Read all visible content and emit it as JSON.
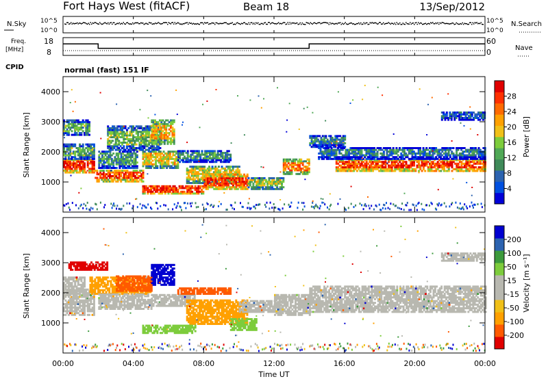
{
  "header": {
    "station": "Fort Hays West (fitACF)",
    "beam": "Beam 18",
    "date": "13/Sep/2012"
  },
  "top_panels": {
    "nsky_label": "N.Sky",
    "nsearch_label": "N.Search",
    "noise_ticks_left": [
      "10^5",
      "10^0"
    ],
    "noise_ticks_right": [
      "10^5",
      "10^0"
    ],
    "freq_label_1": "Freq.",
    "freq_label_2": "[MHz]",
    "freq_ticks": [
      "18",
      "8"
    ],
    "nave_label": "Nave",
    "nave_ticks": [
      "60",
      "0"
    ],
    "cpid_label": "CPID",
    "cpid_text": "normal (fast) 151 IF"
  },
  "colors": {
    "power": [
      "#0000d8",
      "#0050e0",
      "#2c63b0",
      "#3f8a5a",
      "#50a856",
      "#7dcc3c",
      "#f0c018",
      "#ffa000",
      "#ff6a00",
      "#ff3000",
      "#e00000"
    ],
    "velocity": [
      "#e00000",
      "#ff5a00",
      "#ffa000",
      "#f0c018",
      "#b8b8b0",
      "#b8b8b0",
      "#7dcc3c",
      "#3c9a3c",
      "#2c63b0",
      "#0000d0"
    ],
    "ground_scatter": "#b8b8b0"
  },
  "chart_data": [
    {
      "type": "heatmap",
      "title": "Power",
      "xlabel": "Time UT",
      "ylabel": "Slant Range [km]",
      "x_ticks": [
        "00:00",
        "04:00",
        "08:00",
        "12:00",
        "16:00",
        "20:00",
        "00:00"
      ],
      "xlim": [
        0,
        24
      ],
      "y_ticks": [
        "1000",
        "2000",
        "3000",
        "4000"
      ],
      "ylim": [
        0,
        4500
      ],
      "colorbar_label": "Power [dB]",
      "colorbar_ticks": [
        "4",
        "8",
        "12",
        "16",
        "20",
        "24",
        "28"
      ],
      "colorbar_range": [
        0,
        30
      ],
      "bands": [
        {
          "t0": 0.0,
          "t1": 1.8,
          "r0": 1350,
          "r1": 1800,
          "level": 27
        },
        {
          "t0": 0.0,
          "t1": 1.8,
          "r0": 1800,
          "r1": 2300,
          "level": 12
        },
        {
          "t0": 0.0,
          "t1": 1.5,
          "r0": 2600,
          "r1": 3100,
          "level": 12
        },
        {
          "t0": 1.8,
          "t1": 4.5,
          "r0": 1050,
          "r1": 1450,
          "level": 25
        },
        {
          "t0": 2.0,
          "t1": 4.2,
          "r0": 1500,
          "r1": 2100,
          "level": 10
        },
        {
          "t0": 2.5,
          "t1": 5.5,
          "r0": 2100,
          "r1": 2900,
          "level": 13
        },
        {
          "t0": 4.5,
          "t1": 6.5,
          "r0": 1500,
          "r1": 2100,
          "level": 18
        },
        {
          "t0": 5.0,
          "t1": 6.3,
          "r0": 2300,
          "r1": 3100,
          "level": 20
        },
        {
          "t0": 4.5,
          "t1": 8.0,
          "r0": 650,
          "r1": 950,
          "level": 26
        },
        {
          "t0": 6.5,
          "t1": 9.5,
          "r0": 1700,
          "r1": 2100,
          "level": 10
        },
        {
          "t0": 7.0,
          "t1": 10.0,
          "r0": 1000,
          "r1": 1600,
          "level": 17
        },
        {
          "t0": 8.0,
          "t1": 10.5,
          "r0": 800,
          "r1": 1300,
          "level": 26
        },
        {
          "t0": 10.5,
          "t1": 12.5,
          "r0": 800,
          "r1": 1200,
          "level": 15
        },
        {
          "t0": 12.5,
          "t1": 14.0,
          "r0": 1300,
          "r1": 1800,
          "level": 22
        },
        {
          "t0": 14.0,
          "t1": 16.0,
          "r0": 2200,
          "r1": 2600,
          "level": 9
        },
        {
          "t0": 15.5,
          "t1": 24.0,
          "r0": 1400,
          "r1": 1800,
          "level": 26
        },
        {
          "t0": 14.5,
          "t1": 24.0,
          "r0": 1800,
          "r1": 2200,
          "level": 8
        },
        {
          "t0": 21.5,
          "t1": 24.0,
          "r0": 3100,
          "r1": 3400,
          "level": 5
        }
      ]
    },
    {
      "type": "heatmap",
      "title": "Velocity",
      "xlabel": "Time UT",
      "ylabel": "Slant Range [km]",
      "x_ticks": [
        "00:00",
        "04:00",
        "08:00",
        "12:00",
        "16:00",
        "20:00",
        "00:00"
      ],
      "xlim": [
        0,
        24
      ],
      "y_ticks": [
        "1000",
        "2000",
        "3000",
        "4000"
      ],
      "ylim": [
        0,
        4500
      ],
      "colorbar_label": "Velocity [m s⁻¹]",
      "colorbar_ticks": [
        "-200",
        "-100",
        "-50",
        "-15",
        "15",
        "50",
        "100",
        "200"
      ],
      "bands": [
        {
          "t0": 0.0,
          "t1": 1.8,
          "r0": 1300,
          "r1": 2200,
          "level": "gs"
        },
        {
          "t0": 0.0,
          "t1": 1.2,
          "r0": 2000,
          "r1": 2600,
          "level": "gs"
        },
        {
          "t0": 0.3,
          "t1": 2.5,
          "r0": 2800,
          "r1": 3100,
          "level": "red"
        },
        {
          "t0": 1.5,
          "t1": 5.0,
          "r0": 2000,
          "r1": 2600,
          "level": "orange"
        },
        {
          "t0": 3.0,
          "t1": 5.0,
          "r0": 2100,
          "r1": 2600,
          "level": "red2"
        },
        {
          "t0": 5.0,
          "t1": 6.3,
          "r0": 2300,
          "r1": 3000,
          "level": "blue"
        },
        {
          "t0": 2.0,
          "t1": 5.0,
          "r0": 1500,
          "r1": 2000,
          "level": "gs"
        },
        {
          "t0": 5.0,
          "t1": 7.5,
          "r0": 1600,
          "r1": 2000,
          "level": "gs"
        },
        {
          "t0": 6.5,
          "t1": 9.5,
          "r0": 2000,
          "r1": 2200,
          "level": "red2"
        },
        {
          "t0": 7.0,
          "t1": 10.5,
          "r0": 1000,
          "r1": 1800,
          "level": "orange"
        },
        {
          "t0": 10.0,
          "t1": 12.5,
          "r0": 1400,
          "r1": 1800,
          "level": "gs"
        },
        {
          "t0": 4.5,
          "t1": 7.5,
          "r0": 700,
          "r1": 950,
          "level": "green"
        },
        {
          "t0": 9.5,
          "t1": 11.0,
          "r0": 800,
          "r1": 1200,
          "level": "green"
        },
        {
          "t0": 12.0,
          "t1": 14.0,
          "r0": 1300,
          "r1": 2000,
          "level": "gs"
        },
        {
          "t0": 14.0,
          "t1": 24.0,
          "r0": 1400,
          "r1": 2300,
          "level": "gs"
        },
        {
          "t0": 21.5,
          "t1": 24.0,
          "r0": 3100,
          "r1": 3400,
          "level": "gs"
        }
      ]
    },
    {
      "type": "line",
      "title": "Frequency",
      "xlim": [
        0,
        24
      ],
      "ylim": [
        8,
        18
      ],
      "x": [
        0,
        2.0,
        2.0,
        14.0,
        14.0,
        24
      ],
      "y": [
        14.5,
        14.5,
        12.0,
        12.0,
        14.5,
        14.5
      ]
    }
  ]
}
